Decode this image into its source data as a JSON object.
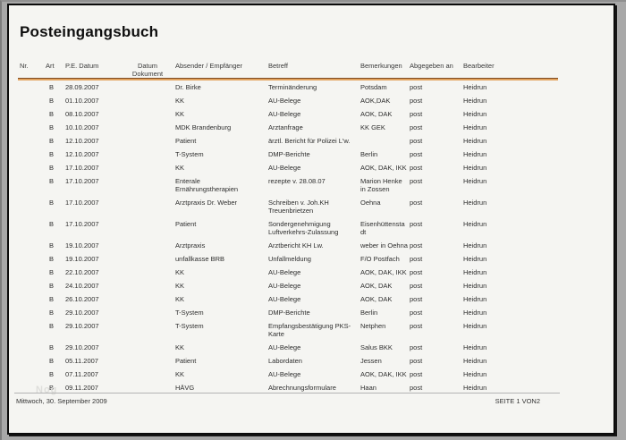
{
  "title": "Posteingangsbuch",
  "colors": {
    "accent_line": "#e2a25d",
    "accent_edge": "#7b4a21",
    "page_bg": "#f5f5f2",
    "frame_bg": "#a8a8a8"
  },
  "watermark": "Nog",
  "table": {
    "headers": [
      "Nr.",
      "Art",
      "P.E. Datum",
      "Datum Dokument",
      "Absender / Empfänger",
      "Betreff",
      "Bemerkungen",
      "Abgegeben an",
      "Bearbeiter"
    ],
    "rows": [
      {
        "nr": "",
        "art": "B",
        "pe_datum": "28.09.2007",
        "datum_dokument": "",
        "absender": "Dr. Birke",
        "betreff": "Terminänderung",
        "bemerkungen": "Potsdam",
        "abgegeben_an": "post",
        "bearbeiter": "Heidrun"
      },
      {
        "nr": "",
        "art": "B",
        "pe_datum": "01.10.2007",
        "datum_dokument": "",
        "absender": "KK",
        "betreff": "AU-Belege",
        "bemerkungen": "AOK,DAK",
        "abgegeben_an": "post",
        "bearbeiter": "Heidrun"
      },
      {
        "nr": "",
        "art": "B",
        "pe_datum": "08.10.2007",
        "datum_dokument": "",
        "absender": "KK",
        "betreff": "AU-Belege",
        "bemerkungen": "AOK, DAK",
        "abgegeben_an": "post",
        "bearbeiter": "Heidrun"
      },
      {
        "nr": "",
        "art": "B",
        "pe_datum": "10.10.2007",
        "datum_dokument": "",
        "absender": "MDK Brandenburg",
        "betreff": "Arztanfrage",
        "bemerkungen": "KK GEK",
        "abgegeben_an": "post",
        "bearbeiter": "Heidrun"
      },
      {
        "nr": "",
        "art": "B",
        "pe_datum": "12.10.2007",
        "datum_dokument": "",
        "absender": "Patient",
        "betreff": "ärztl. Bericht für Polizei L'w.",
        "bemerkungen": "",
        "abgegeben_an": "post",
        "bearbeiter": "Heidrun"
      },
      {
        "nr": "",
        "art": "B",
        "pe_datum": "12.10.2007",
        "datum_dokument": "",
        "absender": "T-System",
        "betreff": "DMP-Berichte",
        "bemerkungen": "Berlin",
        "abgegeben_an": "post",
        "bearbeiter": "Heidrun"
      },
      {
        "nr": "",
        "art": "B",
        "pe_datum": "17.10.2007",
        "datum_dokument": "",
        "absender": "KK",
        "betreff": "AU-Belege",
        "bemerkungen": "AOK, DAK, IKK",
        "abgegeben_an": "post",
        "bearbeiter": "Heidrun"
      },
      {
        "nr": "",
        "art": "B",
        "pe_datum": "17.10.2007",
        "datum_dokument": "",
        "absender": "Enterale Ernährungstherapien",
        "betreff": "rezepte v. 28.08.07",
        "bemerkungen": "Marion Henke in Zossen",
        "abgegeben_an": "post",
        "bearbeiter": "Heidrun"
      },
      {
        "nr": "",
        "art": "B",
        "pe_datum": "17.10.2007",
        "datum_dokument": "",
        "absender": "Arztpraxis Dr. Weber",
        "betreff": "Schreiben v. Joh.KH Treuenbrietzen",
        "bemerkungen": "Oehna",
        "abgegeben_an": "post",
        "bearbeiter": "Heidrun"
      },
      {
        "nr": "",
        "art": "B",
        "pe_datum": "17.10.2007",
        "datum_dokument": "",
        "absender": "Patient",
        "betreff": "Sondergenehmigung Luftverkehrs-Zulassung",
        "bemerkungen": "Eisenhüttenstadt",
        "abgegeben_an": "post",
        "bearbeiter": "Heidrun"
      },
      {
        "nr": "",
        "art": "B",
        "pe_datum": "19.10.2007",
        "datum_dokument": "",
        "absender": "Arztpraxis",
        "betreff": "Arztbericht KH Lw.",
        "bemerkungen": "weber in Oehna",
        "abgegeben_an": "post",
        "bearbeiter": "Heidrun"
      },
      {
        "nr": "",
        "art": "B",
        "pe_datum": "19.10.2007",
        "datum_dokument": "",
        "absender": "unfallkasse BRB",
        "betreff": "Unfallmeldung",
        "bemerkungen": "F/O Postfach",
        "abgegeben_an": "post",
        "bearbeiter": "Heidrun"
      },
      {
        "nr": "",
        "art": "B",
        "pe_datum": "22.10.2007",
        "datum_dokument": "",
        "absender": "KK",
        "betreff": "AU-Belege",
        "bemerkungen": "AOK, DAK, IKK",
        "abgegeben_an": "post",
        "bearbeiter": "Heidrun"
      },
      {
        "nr": "",
        "art": "B",
        "pe_datum": "24.10.2007",
        "datum_dokument": "",
        "absender": "KK",
        "betreff": "AU-Belege",
        "bemerkungen": "AOK, DAK",
        "abgegeben_an": "post",
        "bearbeiter": "Heidrun"
      },
      {
        "nr": "",
        "art": "B",
        "pe_datum": "26.10.2007",
        "datum_dokument": "",
        "absender": "KK",
        "betreff": "AU-Belege",
        "bemerkungen": "AOK, DAK",
        "abgegeben_an": "post",
        "bearbeiter": "Heidrun"
      },
      {
        "nr": "",
        "art": "B",
        "pe_datum": "29.10.2007",
        "datum_dokument": "",
        "absender": "T-System",
        "betreff": "DMP-Berichte",
        "bemerkungen": "Berlin",
        "abgegeben_an": "post",
        "bearbeiter": "Heidrun"
      },
      {
        "nr": "",
        "art": "B",
        "pe_datum": "29.10.2007",
        "datum_dokument": "",
        "absender": "T-System",
        "betreff": "Empfangsbestätigung PKS-Karte",
        "bemerkungen": "Netphen",
        "abgegeben_an": "post",
        "bearbeiter": "Heidrun"
      },
      {
        "nr": "",
        "art": "B",
        "pe_datum": "29.10.2007",
        "datum_dokument": "",
        "absender": "KK",
        "betreff": "AU-Belege",
        "bemerkungen": "Salus BKK",
        "abgegeben_an": "post",
        "bearbeiter": "Heidrun"
      },
      {
        "nr": "",
        "art": "B",
        "pe_datum": "05.11.2007",
        "datum_dokument": "",
        "absender": "Patient",
        "betreff": "Labordaten",
        "bemerkungen": "Jessen",
        "abgegeben_an": "post",
        "bearbeiter": "Heidrun"
      },
      {
        "nr": "",
        "art": "B",
        "pe_datum": "07.11.2007",
        "datum_dokument": "",
        "absender": "KK",
        "betreff": "AU-Belege",
        "bemerkungen": "AOK, DAK, IKK",
        "abgegeben_an": "post",
        "bearbeiter": "Heidrun"
      },
      {
        "nr": "",
        "art": "B",
        "pe_datum": "09.11.2007",
        "datum_dokument": "",
        "absender": "HÄVG",
        "betreff": "Abrechnungsformulare",
        "bemerkungen": "Haan",
        "abgegeben_an": "post",
        "bearbeiter": "Heidrun"
      }
    ]
  },
  "footer": {
    "date": "Mittwoch, 30. September 2009",
    "page_indicator": "SEITE 1 VON2"
  }
}
